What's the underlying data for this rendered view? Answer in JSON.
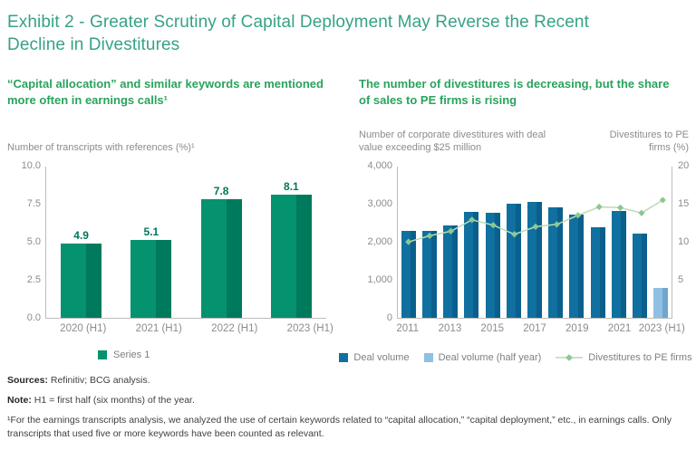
{
  "page": {
    "title": "Exhibit 2 - Greater Scrutiny of Capital Deployment May Reverse the Recent Decline in Divestitures"
  },
  "colors": {
    "title_teal": "#36A287",
    "header_green": "#29A35D",
    "caption_gray": "#8C8C8C",
    "axis_gray": "#BDBDBD",
    "green_bar": "#05926F",
    "green_bar_shade": "#007A5C",
    "green_bar_label": "#00755C",
    "blue_bar": "#10709F",
    "blue_bar_shade": "#0B5F8C",
    "light_blue_bar": "#8FC0E2",
    "light_blue_bar_shade": "#6FA6CE",
    "trend_line": "#B9DCB4",
    "trend_marker": "#8CC794"
  },
  "chart_data": [
    {
      "type": "bar",
      "title": "“Capital allocation” and similar keywords are mentioned more often in earnings calls¹",
      "ylabel": "Number of transcripts with references (%)¹",
      "xlabel": "",
      "categories": [
        "2020 (H1)",
        "2021 (H1)",
        "2022 (H1)",
        "2023 (H1)"
      ],
      "values": [
        4.9,
        5.1,
        7.8,
        8.1
      ],
      "value_labels": [
        "4.9",
        "5.1",
        "7.8",
        "8.1"
      ],
      "ylim": [
        0,
        10
      ],
      "yticks": [
        0,
        2.5,
        5,
        7.5,
        10
      ],
      "ytick_labels": [
        "0.0",
        "2.5",
        "5.0",
        "7.5",
        "10.0"
      ],
      "grid": false,
      "legend_position": "bottom",
      "legend": [
        {
          "label": "Series 1",
          "color": "#05926F"
        }
      ],
      "bar_color": "#05926F",
      "bar_color_shade": "#007A5C",
      "label_color": "#00755C"
    },
    {
      "type": "bar+line",
      "title": "The number of divestitures is decreasing, but the share of sales to PE firms is rising",
      "left_axis_label": "Number of corporate divestitures with deal value exceeding $25 million",
      "right_axis_label": "Divestitures to PE firms (%)",
      "categories": [
        "2011",
        "2012",
        "2013",
        "2014",
        "2015",
        "2016",
        "2017",
        "2018",
        "2019",
        "2020",
        "2021",
        "2022",
        "2023 (H1)"
      ],
      "xtick_indices": [
        0,
        2,
        4,
        6,
        8,
        10,
        12
      ],
      "left_ylim": [
        0,
        4000
      ],
      "left_yticks": [
        0,
        1000,
        2000,
        3000,
        4000
      ],
      "left_ytick_labels": [
        "0",
        "1,000",
        "2,000",
        "3,000",
        "4,000"
      ],
      "right_ylim": [
        0,
        20
      ],
      "right_yticks": [
        5,
        10,
        15,
        20
      ],
      "right_ytick_labels": [
        "5",
        "10",
        "15",
        "20"
      ],
      "grid": false,
      "legend_position": "bottom",
      "series": [
        {
          "name": "Deal volume",
          "type": "bar",
          "axis": "left",
          "color": "#10709F",
          "color_shade": "#0B5F8C",
          "values": [
            2300,
            2280,
            2430,
            2780,
            2760,
            3010,
            3060,
            2910,
            2720,
            2390,
            2810,
            2210,
            null
          ]
        },
        {
          "name": "Deal volume (half year)",
          "type": "bar",
          "axis": "left",
          "color": "#8FC0E2",
          "color_shade": "#6FA6CE",
          "values": [
            null,
            null,
            null,
            null,
            null,
            null,
            null,
            null,
            null,
            null,
            null,
            null,
            780
          ]
        },
        {
          "name": "Divestitures to PE firms",
          "type": "line",
          "axis": "right",
          "color": "#B9DCB4",
          "marker_color": "#8CC794",
          "values": [
            10.1,
            10.9,
            11.5,
            13.0,
            12.3,
            11.1,
            12.1,
            12.4,
            13.6,
            14.7,
            14.6,
            13.9,
            15.6
          ]
        }
      ]
    }
  ],
  "footer": {
    "sources_label": "Sources:",
    "sources_text": " Refinitiv; BCG analysis.",
    "note_label": "Note:",
    "note_text": " H1 = first half (six months) of the year.",
    "footnote": "¹For the earnings transcripts analysis, we analyzed the use of certain keywords related to “capital allocation,” “capital deployment,” etc., in earnings calls. Only transcripts that used five or more keywords have been counted as relevant."
  }
}
